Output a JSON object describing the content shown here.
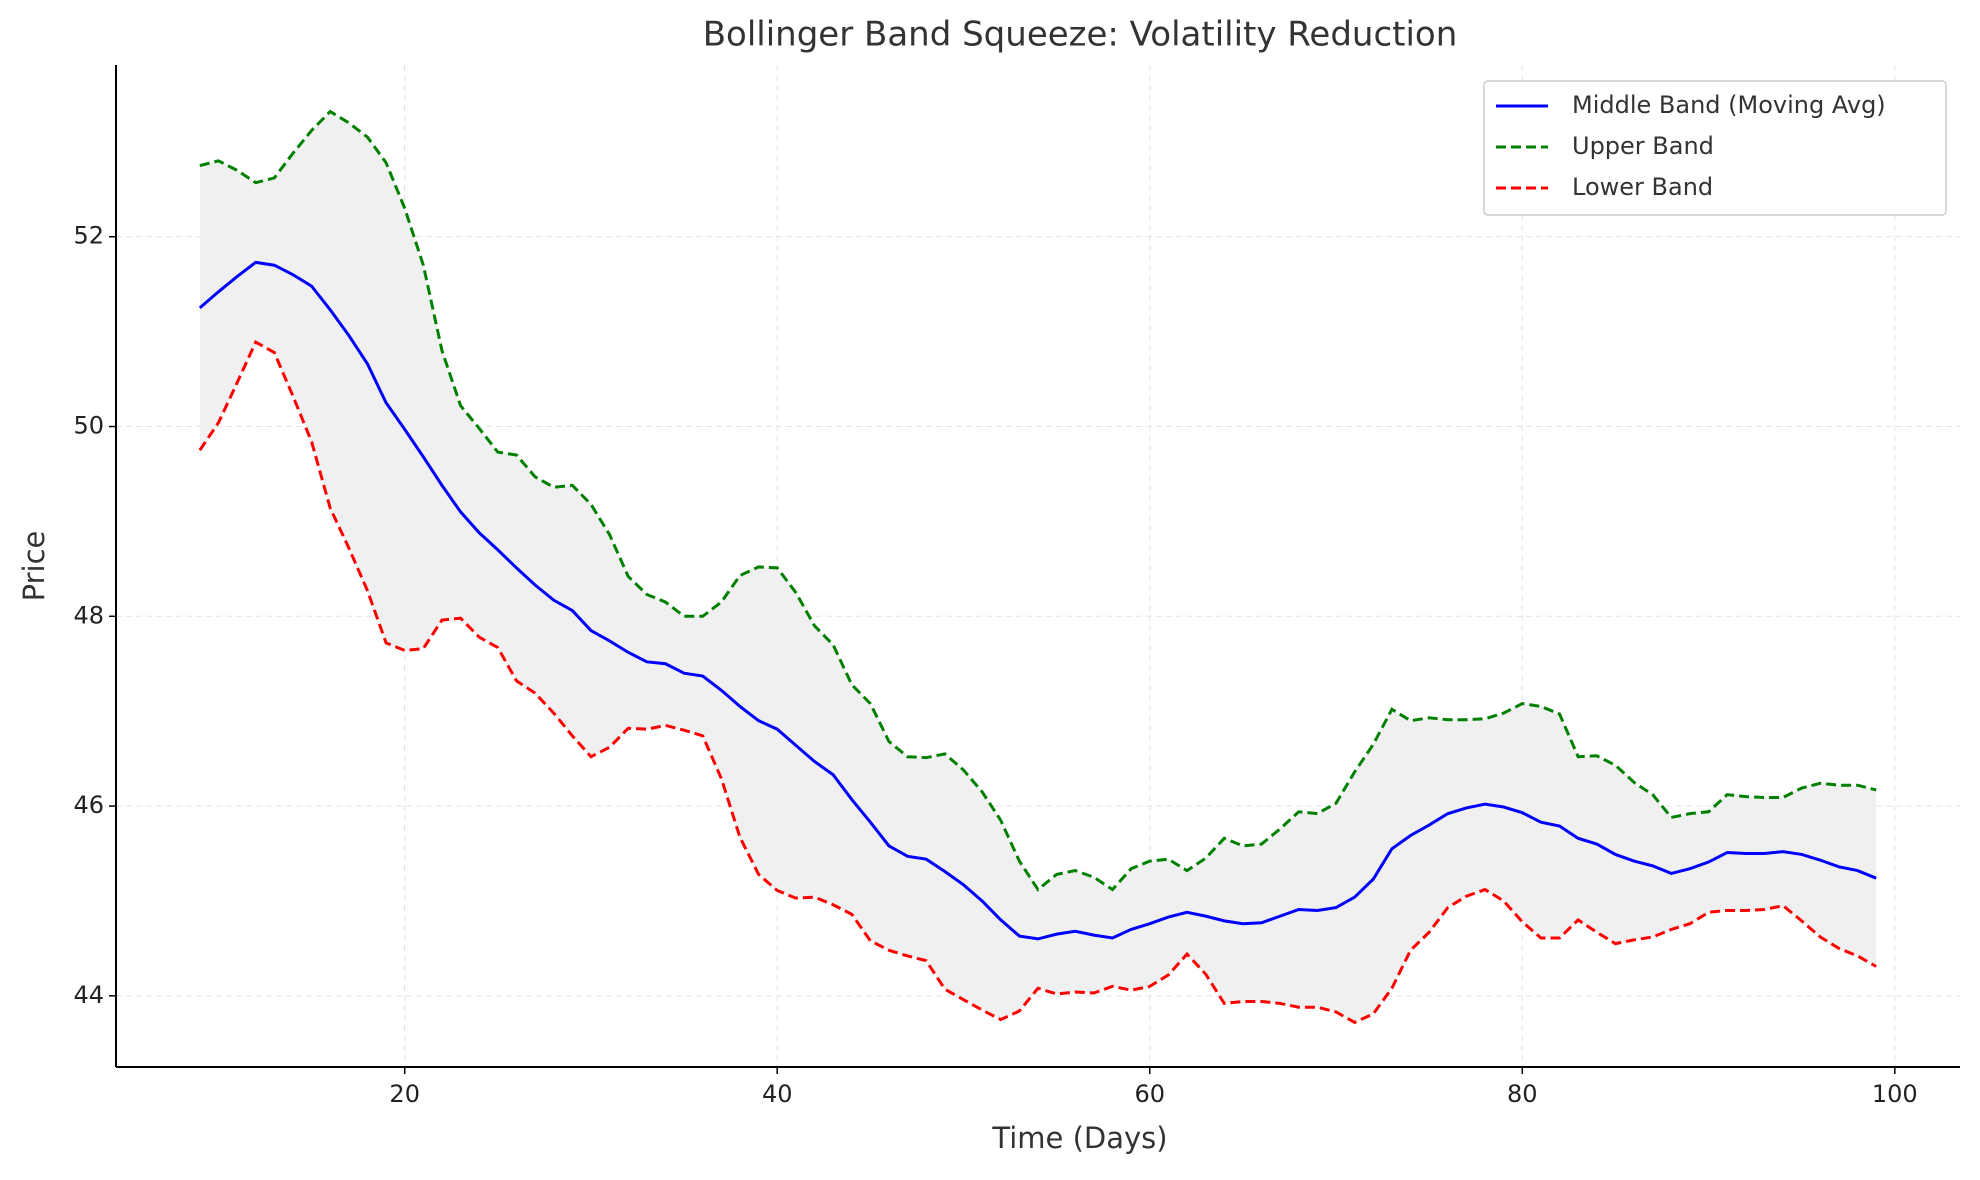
{
  "chart_data": {
    "type": "line",
    "title": "Bollinger Band Squeeze: Volatility Reduction",
    "x_label": "Time (Days)",
    "y_label": "Price",
    "x": [
      9,
      10,
      11,
      12,
      13,
      14,
      15,
      16,
      17,
      18,
      19,
      20,
      21,
      22,
      23,
      24,
      25,
      26,
      27,
      28,
      29,
      30,
      31,
      32,
      33,
      34,
      35,
      36,
      37,
      38,
      39,
      40,
      41,
      42,
      43,
      44,
      45,
      46,
      47,
      48,
      49,
      50,
      51,
      52,
      53,
      54,
      55,
      56,
      57,
      58,
      59,
      60,
      61,
      62,
      63,
      64,
      65,
      66,
      67,
      68,
      69,
      70,
      71,
      72,
      73,
      74,
      75,
      76,
      77,
      78,
      79,
      80,
      81,
      82,
      83,
      84,
      85,
      86,
      87,
      88,
      89,
      90,
      91,
      92,
      93,
      94,
      95,
      96,
      97,
      98,
      99
    ],
    "series": [
      {
        "name": "Middle Band (Moving Avg)",
        "color": "#0000ff",
        "linestyle": "solid",
        "values": [
          51.25,
          51.42,
          51.58,
          51.73,
          51.7,
          51.6,
          51.48,
          51.23,
          50.96,
          50.66,
          50.25,
          49.97,
          49.68,
          49.38,
          49.1,
          48.88,
          48.7,
          48.51,
          48.33,
          48.17,
          48.06,
          47.85,
          47.74,
          47.62,
          47.52,
          47.5,
          47.4,
          47.37,
          47.22,
          47.05,
          46.9,
          46.81,
          46.64,
          46.47,
          46.33,
          46.07,
          45.83,
          45.58,
          45.47,
          45.44,
          45.31,
          45.17,
          45.0,
          44.8,
          44.63,
          44.6,
          44.65,
          44.68,
          44.64,
          44.61,
          44.7,
          44.76,
          44.83,
          44.88,
          44.84,
          44.79,
          44.76,
          44.77,
          44.84,
          44.91,
          44.9,
          44.93,
          45.04,
          45.23,
          45.55,
          45.69,
          45.8,
          45.92,
          45.98,
          46.02,
          45.99,
          45.93,
          45.83,
          45.79,
          45.66,
          45.6,
          45.49,
          45.42,
          45.37,
          45.29,
          45.34,
          45.41,
          45.51,
          45.5,
          45.5,
          45.52,
          45.49,
          45.43,
          45.36,
          45.32,
          45.24
        ]
      },
      {
        "name": "Upper Band",
        "color": "#008000",
        "linestyle": "dashed",
        "values": [
          52.75,
          52.8,
          52.7,
          52.57,
          52.62,
          52.88,
          53.12,
          53.32,
          53.2,
          53.05,
          52.78,
          52.3,
          51.7,
          50.8,
          50.22,
          49.98,
          49.73,
          49.7,
          49.47,
          49.36,
          49.38,
          49.18,
          48.86,
          48.42,
          48.23,
          48.15,
          48.0,
          48.0,
          48.15,
          48.43,
          48.52,
          48.51,
          48.25,
          47.9,
          47.7,
          47.28,
          47.08,
          46.68,
          46.52,
          46.51,
          46.55,
          46.38,
          46.15,
          45.85,
          45.42,
          45.12,
          45.28,
          45.32,
          45.25,
          45.12,
          45.34,
          45.42,
          45.44,
          45.32,
          45.45,
          45.66,
          45.58,
          45.6,
          45.76,
          45.94,
          45.92,
          46.03,
          46.36,
          46.65,
          47.02,
          46.9,
          46.93,
          46.91,
          46.91,
          46.92,
          46.98,
          47.08,
          47.05,
          46.97,
          46.52,
          46.53,
          46.43,
          46.25,
          46.12,
          45.88,
          45.92,
          45.94,
          46.12,
          46.1,
          46.09,
          46.09,
          46.19,
          46.24,
          46.22,
          46.22,
          46.17
        ]
      },
      {
        "name": "Lower Band",
        "color": "#ff0000",
        "linestyle": "dashed",
        "values": [
          49.75,
          50.04,
          50.46,
          50.89,
          50.78,
          50.32,
          49.84,
          49.14,
          48.72,
          48.27,
          47.72,
          47.64,
          47.66,
          47.96,
          47.98,
          47.78,
          47.67,
          47.32,
          47.19,
          46.98,
          46.74,
          46.52,
          46.62,
          46.82,
          46.81,
          46.85,
          46.8,
          46.74,
          46.29,
          45.67,
          45.28,
          45.11,
          45.03,
          45.04,
          44.96,
          44.86,
          44.58,
          44.48,
          44.42,
          44.37,
          44.07,
          43.96,
          43.85,
          43.75,
          43.84,
          44.08,
          44.02,
          44.04,
          44.03,
          44.1,
          44.06,
          44.1,
          44.22,
          44.44,
          44.23,
          43.92,
          43.94,
          43.94,
          43.92,
          43.88,
          43.88,
          43.83,
          43.72,
          43.81,
          44.08,
          44.48,
          44.67,
          44.93,
          45.05,
          45.12,
          45.0,
          44.78,
          44.61,
          44.61,
          44.8,
          44.67,
          44.55,
          44.59,
          44.62,
          44.7,
          44.76,
          44.88,
          44.9,
          44.9,
          44.91,
          44.95,
          44.79,
          44.62,
          44.5,
          44.42,
          44.31
        ]
      }
    ],
    "band_fill": "#f0f0f0",
    "xlim": [
      4.5,
      103.5
    ],
    "ylim": [
      43.25,
      53.81
    ],
    "xticks": [
      20,
      40,
      60,
      80,
      100
    ],
    "yticks": [
      44,
      46,
      48,
      50,
      52
    ],
    "grid": true,
    "legend": "upper right"
  }
}
